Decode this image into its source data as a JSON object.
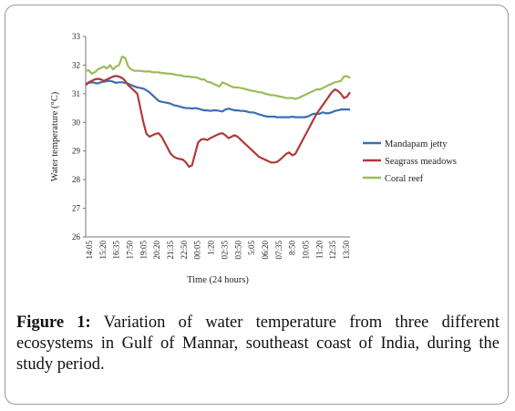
{
  "caption": {
    "label": "Figure 1:",
    "text": "Variation of water temperature from three different ecosystems in Gulf of Mannar, southeast coast of India, during the study period."
  },
  "chart_data": {
    "type": "line",
    "xlabel": "Time  (24 hours)",
    "ylabel": "Water temperature  (°C)",
    "ylim": [
      26,
      33
    ],
    "yticks": [
      26,
      27,
      28,
      29,
      30,
      31,
      32,
      33
    ],
    "grid": false,
    "legend_position": "right",
    "x_tick_labels": [
      "14:05",
      "15:20",
      "16:35",
      "17:50",
      "19:05",
      "20:20",
      "21:35",
      "22:50",
      "00:05",
      "1:20",
      "02:35",
      "03:50",
      "5:05",
      "06:20",
      "07:35",
      "8:50",
      "10:05",
      "11:20",
      "12:35",
      "13:50"
    ],
    "series": [
      {
        "name": "Mandapam jetty",
        "color": "#3a6fb0",
        "values": [
          31.35,
          31.38,
          31.4,
          31.38,
          31.36,
          31.4,
          31.42,
          31.44,
          31.45,
          31.42,
          31.38,
          31.4,
          31.4,
          31.38,
          31.35,
          31.3,
          31.26,
          31.22,
          31.2,
          31.18,
          31.12,
          31.05,
          30.95,
          30.85,
          30.75,
          30.72,
          30.7,
          30.68,
          30.65,
          30.6,
          30.58,
          30.55,
          30.52,
          30.5,
          30.5,
          30.48,
          30.5,
          30.48,
          30.45,
          30.42,
          30.42,
          30.4,
          30.42,
          30.42,
          30.4,
          30.38,
          30.45,
          30.48,
          30.45,
          30.42,
          30.42,
          30.4,
          30.4,
          30.38,
          30.35,
          30.35,
          30.32,
          30.28,
          30.25,
          30.22,
          30.2,
          30.2,
          30.2,
          30.18,
          30.18,
          30.18,
          30.18,
          30.18,
          30.2,
          30.18,
          30.18,
          30.18,
          30.18,
          30.2,
          30.25,
          30.3,
          30.3,
          30.3,
          30.35,
          30.32,
          30.32,
          30.35,
          30.4,
          30.42,
          30.45,
          30.45,
          30.45,
          30.45
        ]
      },
      {
        "name": "Seagrass meadows",
        "color": "#b03a3a",
        "values": [
          31.3,
          31.4,
          31.45,
          31.5,
          31.52,
          31.5,
          31.45,
          31.5,
          31.55,
          31.6,
          31.62,
          31.6,
          31.55,
          31.45,
          31.3,
          31.2,
          31.1,
          31.0,
          30.5,
          30.0,
          29.6,
          29.5,
          29.55,
          29.6,
          29.62,
          29.5,
          29.3,
          29.1,
          28.9,
          28.8,
          28.75,
          28.72,
          28.7,
          28.6,
          28.45,
          28.5,
          28.9,
          29.3,
          29.4,
          29.42,
          29.38,
          29.45,
          29.5,
          29.55,
          29.6,
          29.62,
          29.55,
          29.45,
          29.5,
          29.55,
          29.5,
          29.4,
          29.3,
          29.2,
          29.1,
          29.0,
          28.9,
          28.8,
          28.75,
          28.7,
          28.65,
          28.6,
          28.6,
          28.62,
          28.7,
          28.8,
          28.9,
          28.95,
          28.85,
          28.9,
          29.1,
          29.3,
          29.5,
          29.7,
          29.9,
          30.1,
          30.3,
          30.45,
          30.6,
          30.75,
          30.9,
          31.05,
          31.15,
          31.1,
          31.0,
          30.85,
          30.9,
          31.05
        ]
      },
      {
        "name": "Coral reef",
        "color": "#9bbb59",
        "values": [
          31.8,
          31.82,
          31.7,
          31.75,
          31.85,
          31.9,
          31.95,
          31.88,
          32.0,
          31.85,
          31.95,
          32.0,
          32.3,
          32.25,
          31.95,
          31.85,
          31.8,
          31.8,
          31.8,
          31.78,
          31.78,
          31.78,
          31.75,
          31.75,
          31.75,
          31.72,
          31.72,
          31.7,
          31.7,
          31.68,
          31.65,
          31.65,
          31.62,
          31.6,
          31.6,
          31.58,
          31.58,
          31.55,
          31.5,
          31.5,
          31.42,
          31.4,
          31.35,
          31.3,
          31.25,
          31.4,
          31.35,
          31.3,
          31.25,
          31.22,
          31.22,
          31.2,
          31.18,
          31.15,
          31.12,
          31.1,
          31.08,
          31.05,
          31.05,
          31.0,
          30.98,
          30.95,
          30.95,
          30.92,
          30.9,
          30.88,
          30.85,
          30.85,
          30.85,
          30.82,
          30.85,
          30.9,
          30.95,
          31.0,
          31.05,
          31.1,
          31.15,
          31.15,
          31.2,
          31.25,
          31.3,
          31.35,
          31.4,
          31.42,
          31.45,
          31.6,
          31.62,
          31.55
        ]
      }
    ]
  }
}
